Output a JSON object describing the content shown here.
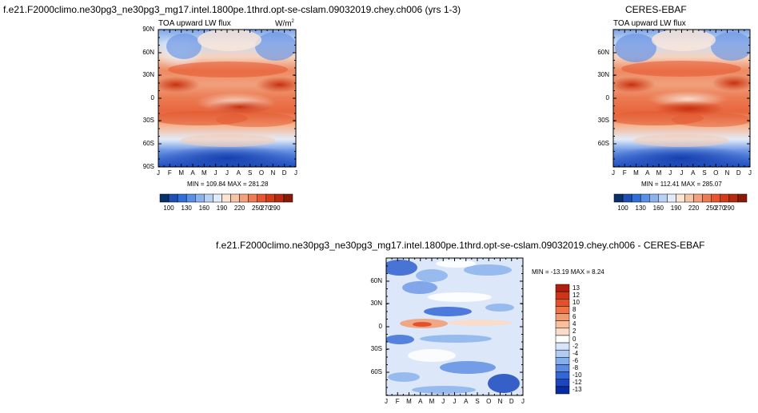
{
  "chart_data": [
    {
      "type": "heatmap",
      "title": "f.e21.F2000climo.ne30pg3_ne30pg3_mg17.intel.1800pe.1thrd.opt-se-cslam.09032019.chey.ch006 (yrs 1-3)",
      "subtitle_left": "TOA upward LW flux",
      "units_prefix": "W/m",
      "units_exp": "2",
      "stats": "MIN = 109.84 MAX = 281.28",
      "x_ticks": [
        "J",
        "F",
        "M",
        "A",
        "M",
        "J",
        "J",
        "A",
        "S",
        "O",
        "N",
        "D",
        "J"
      ],
      "y_ticks": [
        "90N",
        "60N",
        "30N",
        "0",
        "30S",
        "60S",
        "90S"
      ],
      "colorbar": {
        "labels": [
          "100",
          "130",
          "160",
          "190",
          "220",
          "250",
          "270",
          "290"
        ],
        "colors": [
          "#08306b",
          "#1f4fb4",
          "#2f6fdc",
          "#5a8fe6",
          "#8ab2ee",
          "#b8d1f4",
          "#e2ecfa",
          "#fbe4d4",
          "#f8c4a6",
          "#f4a07c",
          "#ef7a54",
          "#e6552f",
          "#d33a18",
          "#b82a10",
          "#8a1a08"
        ]
      }
    },
    {
      "type": "heatmap",
      "title": "CERES-EBAF",
      "subtitle_left": "TOA upward LW flux",
      "stats": "MIN = 112.41 MAX = 285.07",
      "x_ticks": [
        "J",
        "F",
        "M",
        "A",
        "M",
        "J",
        "J",
        "A",
        "S",
        "O",
        "N",
        "D",
        "J"
      ],
      "y_ticks": [
        "60N",
        "30N",
        "0",
        "30S",
        "60S"
      ],
      "colorbar": {
        "labels": [
          "100",
          "130",
          "160",
          "190",
          "220",
          "250",
          "270",
          "290"
        ]
      }
    },
    {
      "type": "heatmap",
      "title": "f.e21.F2000climo.ne30pg3_ne30pg3_mg17.intel.1800pe.1thrd.opt-se-cslam.09032019.chey.ch006 - CERES-EBAF",
      "stats": "MIN = -13.19 MAX =  8.24",
      "x_ticks": [
        "J",
        "F",
        "M",
        "A",
        "M",
        "J",
        "J",
        "A",
        "S",
        "O",
        "N",
        "D",
        "J"
      ],
      "y_ticks": [
        "60N",
        "30N",
        "0",
        "30S",
        "60S"
      ],
      "colorbar": {
        "labels": [
          "13",
          "12",
          "10",
          "8",
          "6",
          "4",
          "2",
          "0",
          "-2",
          "-4",
          "-6",
          "-8",
          "-10",
          "-12",
          "-13"
        ],
        "colors": [
          "#b01e0e",
          "#cc3518",
          "#e2512a",
          "#ee7448",
          "#f49a70",
          "#f8bfa0",
          "#fbdcc8",
          "#ffffff",
          "#d6e6fa",
          "#b0ccf2",
          "#86aeec",
          "#5a8ae2",
          "#3466d6",
          "#1a46bf",
          "#0a2aa0"
        ]
      }
    }
  ]
}
